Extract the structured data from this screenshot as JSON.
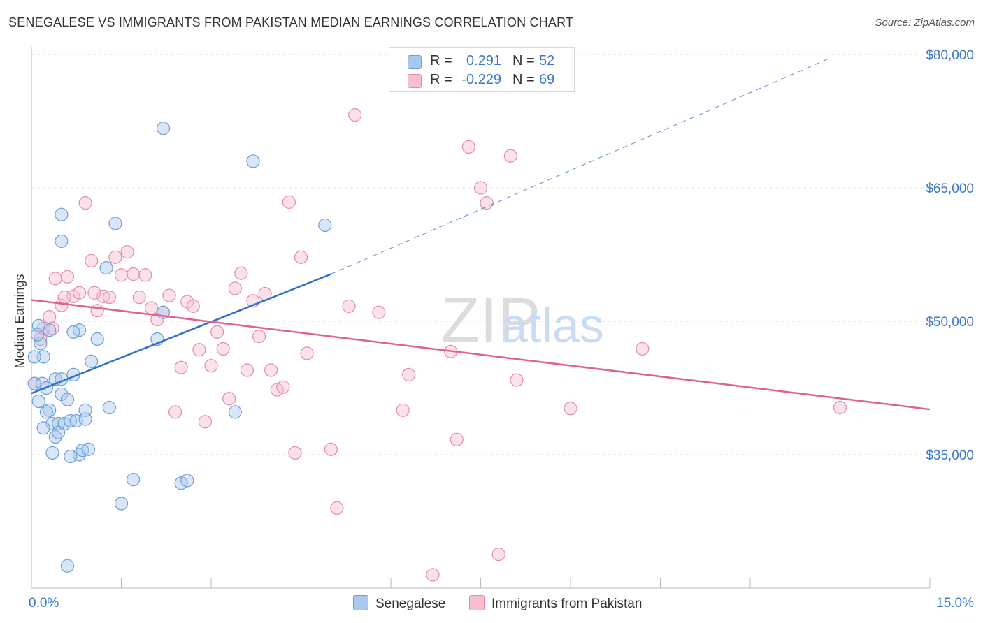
{
  "title": "SENEGALESE VS IMMIGRANTS FROM PAKISTAN MEDIAN EARNINGS CORRELATION CHART",
  "source": "Source: ZipAtlas.com",
  "watermark": {
    "zip": "ZIP",
    "atlas": "atlas"
  },
  "legend": {
    "r_label": "R =",
    "n_label": "N =",
    "series": [
      {
        "name": "Senegalese",
        "r": "0.291",
        "n": "52",
        "fill": "#a9c8f0",
        "stroke": "#6a9fd8"
      },
      {
        "name": "Immigrants from Pakistan",
        "r": "-0.229",
        "n": "69",
        "fill": "#f7bed0",
        "stroke": "#e88aa8"
      }
    ]
  },
  "chart_data": {
    "type": "scatter",
    "ylabel": "Median Earnings",
    "xlim": [
      0,
      15
    ],
    "ylim": [
      20000,
      80000
    ],
    "x_tick_labels": [
      {
        "value": 0,
        "label": "0.0%"
      },
      {
        "value": 15,
        "label": "15.0%"
      }
    ],
    "y_tick_labels": [
      {
        "value": 35000,
        "label": "$35,000"
      },
      {
        "value": 50000,
        "label": "$50,000"
      },
      {
        "value": 65000,
        "label": "$65,000"
      },
      {
        "value": 80000,
        "label": "$80,000"
      }
    ],
    "colors": {
      "blue_line": "#2d6fcf",
      "pink_line": "#e0608f",
      "tick_label": "#3a78c9"
    },
    "series": [
      {
        "name": "Senegalese",
        "trend": {
          "x0": 0.0,
          "y0": 41900,
          "x1": 5.0,
          "y1": 55300,
          "dash_to_x": 13.3,
          "dash_to_y": 79500
        },
        "points": [
          [
            0.05,
            43000
          ],
          [
            0.12,
            41000
          ],
          [
            0.18,
            43000
          ],
          [
            0.25,
            42500
          ],
          [
            0.3,
            40000
          ],
          [
            0.35,
            38500
          ],
          [
            0.4,
            37000
          ],
          [
            0.45,
            38500
          ],
          [
            0.5,
            41800
          ],
          [
            0.55,
            38500
          ],
          [
            0.6,
            41200
          ],
          [
            0.65,
            38800
          ],
          [
            0.7,
            44000
          ],
          [
            0.75,
            38800
          ],
          [
            0.8,
            35000
          ],
          [
            0.85,
            35500
          ],
          [
            0.9,
            40000
          ],
          [
            0.95,
            35600
          ],
          [
            1.0,
            45500
          ],
          [
            1.1,
            48000
          ],
          [
            0.2,
            46000
          ],
          [
            0.15,
            47500
          ],
          [
            0.3,
            49000
          ],
          [
            0.4,
            43500
          ],
          [
            0.5,
            43500
          ],
          [
            0.1,
            48500
          ],
          [
            0.25,
            39800
          ],
          [
            0.8,
            49000
          ],
          [
            0.5,
            59000
          ],
          [
            0.5,
            62000
          ],
          [
            0.7,
            48800
          ],
          [
            1.25,
            56000
          ],
          [
            1.4,
            61000
          ],
          [
            1.5,
            29500
          ],
          [
            1.7,
            32200
          ],
          [
            2.1,
            48000
          ],
          [
            2.2,
            51000
          ],
          [
            2.2,
            71700
          ],
          [
            2.5,
            31800
          ],
          [
            2.6,
            32100
          ],
          [
            3.4,
            39800
          ],
          [
            3.7,
            68000
          ],
          [
            4.9,
            60800
          ],
          [
            0.6,
            22500
          ],
          [
            0.35,
            35200
          ],
          [
            0.9,
            39000
          ],
          [
            1.3,
            40300
          ],
          [
            0.05,
            46000
          ],
          [
            0.2,
            38000
          ],
          [
            0.45,
            37500
          ],
          [
            0.12,
            49500
          ],
          [
            0.65,
            34800
          ]
        ]
      },
      {
        "name": "Immigrants from Pakistan",
        "trend": {
          "x0": 0.0,
          "y0": 52400,
          "x1": 15.0,
          "y1": 40100
        },
        "points": [
          [
            0.05,
            43000
          ],
          [
            0.15,
            48000
          ],
          [
            0.2,
            49200
          ],
          [
            0.3,
            50500
          ],
          [
            0.4,
            54800
          ],
          [
            0.5,
            51800
          ],
          [
            0.6,
            55000
          ],
          [
            0.7,
            52800
          ],
          [
            0.8,
            53200
          ],
          [
            0.9,
            63300
          ],
          [
            1.0,
            56800
          ],
          [
            1.1,
            51200
          ],
          [
            1.2,
            52800
          ],
          [
            1.3,
            52700
          ],
          [
            1.4,
            57200
          ],
          [
            1.5,
            55200
          ],
          [
            1.6,
            57800
          ],
          [
            1.7,
            55300
          ],
          [
            1.8,
            52700
          ],
          [
            1.9,
            55200
          ],
          [
            2.0,
            51500
          ],
          [
            2.1,
            50200
          ],
          [
            2.2,
            51000
          ],
          [
            2.3,
            52900
          ],
          [
            2.4,
            39800
          ],
          [
            2.5,
            44800
          ],
          [
            2.6,
            52200
          ],
          [
            2.7,
            51700
          ],
          [
            2.8,
            46800
          ],
          [
            2.9,
            38700
          ],
          [
            3.0,
            45000
          ],
          [
            3.1,
            48800
          ],
          [
            3.2,
            46900
          ],
          [
            3.3,
            41300
          ],
          [
            3.4,
            53700
          ],
          [
            3.5,
            55400
          ],
          [
            3.6,
            44500
          ],
          [
            3.7,
            52300
          ],
          [
            3.8,
            48300
          ],
          [
            3.9,
            53100
          ],
          [
            4.0,
            44500
          ],
          [
            4.1,
            42300
          ],
          [
            4.2,
            42600
          ],
          [
            4.3,
            63400
          ],
          [
            4.4,
            35200
          ],
          [
            4.5,
            57200
          ],
          [
            4.6,
            46400
          ],
          [
            5.0,
            35600
          ],
          [
            5.1,
            29000
          ],
          [
            5.3,
            51700
          ],
          [
            5.4,
            73200
          ],
          [
            5.8,
            51000
          ],
          [
            6.2,
            40000
          ],
          [
            6.3,
            44000
          ],
          [
            6.7,
            21500
          ],
          [
            7.0,
            46600
          ],
          [
            7.1,
            36700
          ],
          [
            7.3,
            69600
          ],
          [
            7.5,
            65000
          ],
          [
            7.6,
            63300
          ],
          [
            7.8,
            23800
          ],
          [
            8.0,
            68600
          ],
          [
            8.1,
            43400
          ],
          [
            9.0,
            40200
          ],
          [
            10.2,
            46900
          ],
          [
            13.5,
            40300
          ],
          [
            0.35,
            49200
          ],
          [
            0.55,
            52700
          ],
          [
            1.05,
            53200
          ]
        ]
      }
    ]
  }
}
